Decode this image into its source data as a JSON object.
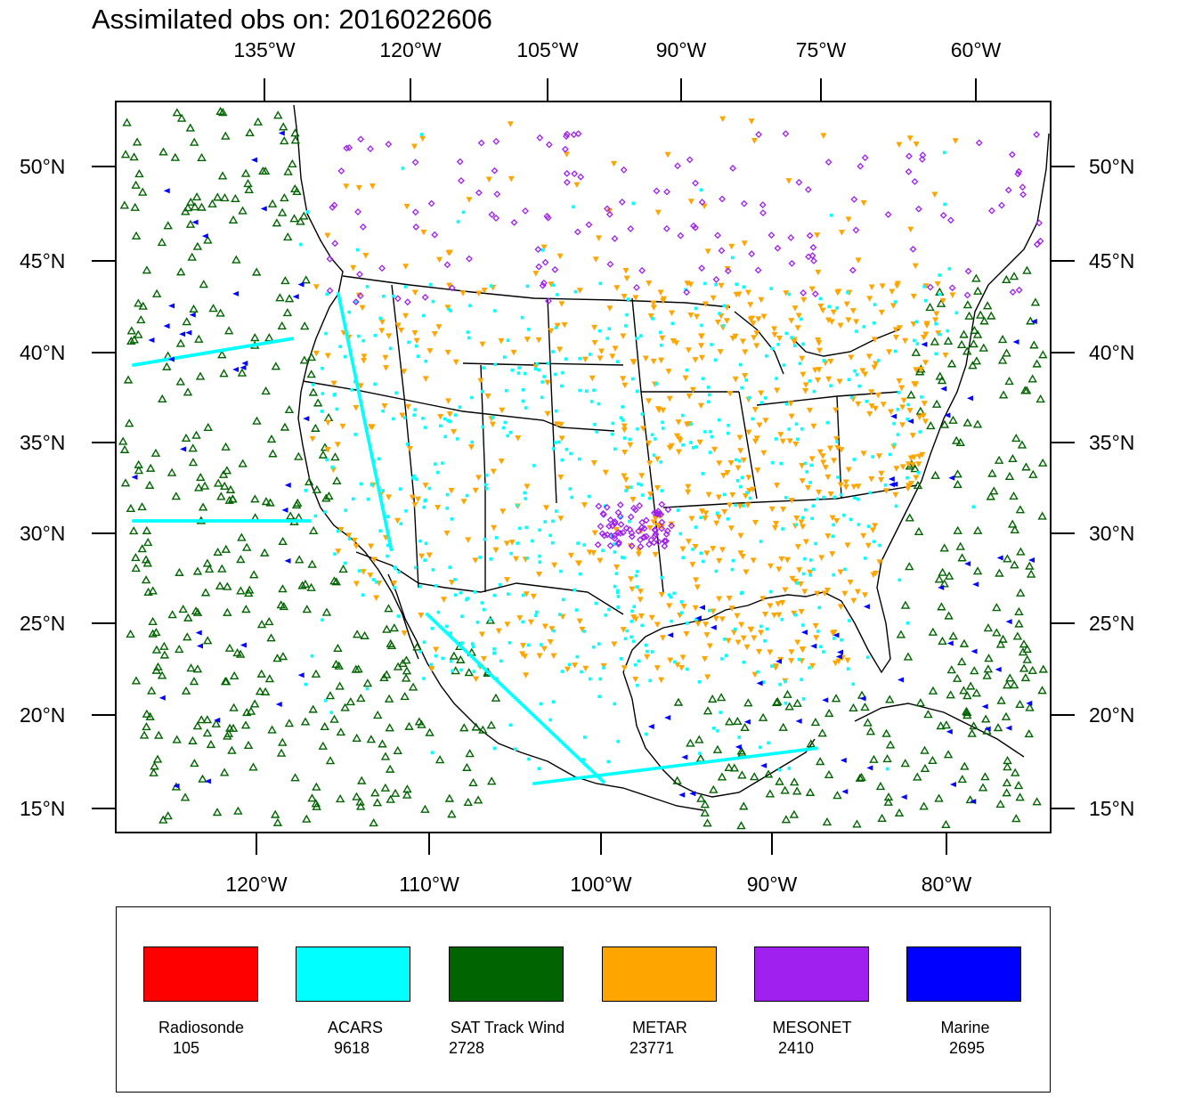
{
  "title": "Assimilated obs on: 2016022606",
  "axes": {
    "top_lon_labels": [
      "135°W",
      "120°W",
      "105°W",
      "90°W",
      "75°W",
      "60°W"
    ],
    "bottom_lon_labels": [
      "120°W",
      "110°W",
      "100°W",
      "90°W",
      "80°W"
    ],
    "lat_labels": [
      "50°N",
      "45°N",
      "40°N",
      "35°N",
      "30°N",
      "25°N",
      "20°N",
      "15°N"
    ]
  },
  "legend": [
    {
      "name": "Radiosonde",
      "count": "105",
      "color": "#ff0000"
    },
    {
      "name": "ACARS",
      "count": "9618",
      "color": "#00ffff"
    },
    {
      "name": "SAT Track Wind",
      "count": "2728",
      "color": "#006400"
    },
    {
      "name": "METAR",
      "count": "23771",
      "color": "#ffa500"
    },
    {
      "name": "MESONET",
      "count": "2410",
      "color": "#a020f0"
    },
    {
      "name": "Marine",
      "count": "2695",
      "color": "#0000ff"
    }
  ]
}
